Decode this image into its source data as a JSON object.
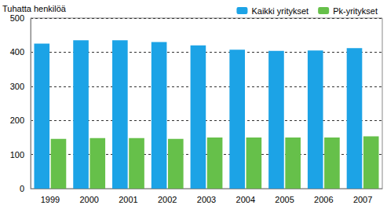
{
  "chart_data": {
    "type": "bar",
    "y_label": "Tuhatta henkilöä",
    "categories": [
      "1999",
      "2000",
      "2001",
      "2002",
      "2003",
      "2004",
      "2005",
      "2006",
      "2007"
    ],
    "series": [
      {
        "name": "Kaikki yritykset",
        "color": "#1ca3e6",
        "values": [
          425,
          435,
          435,
          430,
          420,
          407,
          404,
          405,
          412
        ]
      },
      {
        "name": "Pk-yritykset",
        "color": "#66c04a",
        "values": [
          146,
          148,
          148,
          146,
          150,
          150,
          150,
          150,
          153
        ]
      }
    ],
    "ylim": [
      0,
      500
    ],
    "yticks": [
      0,
      100,
      200,
      300,
      400,
      500
    ],
    "grid": true,
    "legend": "top right"
  }
}
